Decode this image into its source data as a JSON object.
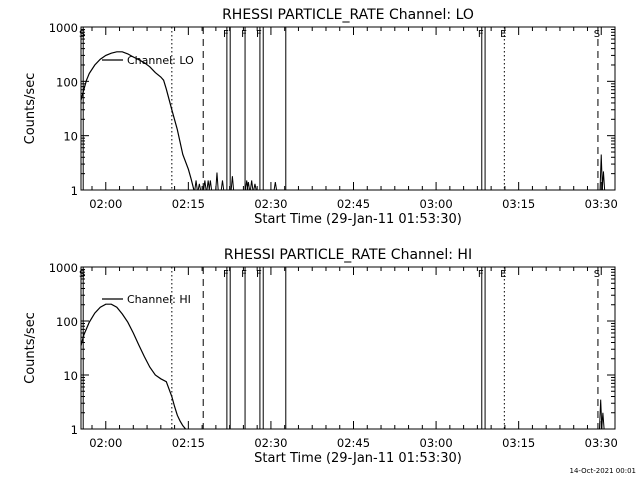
{
  "footer": {
    "timestamp": "14-Oct-2021 00:01"
  },
  "flag_colors": {
    "line": "#000000",
    "background": "#ffffff"
  },
  "chart_data": [
    {
      "type": "line",
      "title": "RHESSI PARTICLE_RATE Channel: LO",
      "xlabel": "Start Time (29-Jan-11 01:53:30)",
      "ylabel": "Counts/sec",
      "yscale": "log",
      "ylim": [
        1,
        1000
      ],
      "xlim_min": [
        115.5,
        212.5
      ],
      "x_tick_labels": [
        "02:00",
        "02:15",
        "02:30",
        "02:45",
        "03:00",
        "03:15",
        "03:30"
      ],
      "x_tick_values": [
        120,
        135,
        150,
        165,
        180,
        195,
        210
      ],
      "y_tick_labels": [
        "1",
        "10",
        "100",
        "1000"
      ],
      "y_tick_values": [
        1,
        10,
        100,
        1000
      ],
      "legend": "Channel: LO",
      "grid": false,
      "series": [
        {
          "name": "Channel: LO",
          "x": [
            115.5,
            116.0,
            116.5,
            117.0,
            118.0,
            119.0,
            120.0,
            121.0,
            122.0,
            123.0,
            124.0,
            125.0,
            126.0,
            127.0,
            128.0,
            129.0,
            130.0,
            130.5,
            131.0,
            132.0,
            133.0,
            134.0,
            135.0,
            135.5,
            136.0
          ],
          "y": [
            45,
            70,
            105,
            140,
            200,
            255,
            300,
            330,
            350,
            350,
            320,
            280,
            250,
            220,
            185,
            145,
            120,
            105,
            72,
            30,
            13,
            4.5,
            2.4,
            1.6,
            1
          ]
        }
      ],
      "spikes": [
        {
          "x": 136.4,
          "y": 1.5
        },
        {
          "x": 137.0,
          "y": 1.3
        },
        {
          "x": 138.0,
          "y": 1.5
        },
        {
          "x": 138.6,
          "y": 1.5
        },
        {
          "x": 139.0,
          "y": 1.5
        },
        {
          "x": 140.2,
          "y": 2.1
        },
        {
          "x": 141.2,
          "y": 1.5
        },
        {
          "x": 143.0,
          "y": 1.8
        },
        {
          "x": 145.6,
          "y": 1.5
        },
        {
          "x": 145.9,
          "y": 1.4
        },
        {
          "x": 146.5,
          "y": 1.5
        },
        {
          "x": 147.1,
          "y": 1.3
        },
        {
          "x": 150.8,
          "y": 1.4
        },
        {
          "x": 210.0,
          "y": 4.5
        },
        {
          "x": 210.4,
          "y": 2.2
        }
      ],
      "flags": [
        {
          "label": "S",
          "x": 115.9,
          "style": "solid"
        },
        {
          "label": "",
          "x": 132.0,
          "style": "dotted"
        },
        {
          "label": "",
          "x": 137.7,
          "style": "dashed"
        },
        {
          "label": "F",
          "x": 142.0,
          "style": "solid"
        },
        {
          "label": "",
          "x": 142.6,
          "style": "solid"
        },
        {
          "label": "F",
          "x": 145.3,
          "style": "solid"
        },
        {
          "label": "F",
          "x": 148.0,
          "style": "solid"
        },
        {
          "label": "",
          "x": 148.6,
          "style": "solid"
        },
        {
          "label": "",
          "x": 152.7,
          "style": "solid"
        },
        {
          "label": "F",
          "x": 188.3,
          "style": "solid"
        },
        {
          "label": "",
          "x": 188.9,
          "style": "solid"
        },
        {
          "label": "E",
          "x": 192.4,
          "style": "dotted"
        },
        {
          "label": "S",
          "x": 209.4,
          "style": "dashed"
        }
      ]
    },
    {
      "type": "line",
      "title": "RHESSI PARTICLE_RATE Channel: HI",
      "xlabel": "Start Time (29-Jan-11 01:53:30)",
      "ylabel": "Counts/sec",
      "yscale": "log",
      "ylim": [
        1,
        1000
      ],
      "xlim_min": [
        115.5,
        212.5
      ],
      "x_tick_labels": [
        "02:00",
        "02:15",
        "02:30",
        "02:45",
        "03:00",
        "03:15",
        "03:30"
      ],
      "x_tick_values": [
        120,
        135,
        150,
        165,
        180,
        195,
        210
      ],
      "y_tick_labels": [
        "1",
        "10",
        "100",
        "1000"
      ],
      "y_tick_values": [
        1,
        10,
        100,
        1000
      ],
      "legend": "Channel: HI",
      "grid": false,
      "series": [
        {
          "name": "Channel: HI",
          "x": [
            115.5,
            116.0,
            117.0,
            118.0,
            119.0,
            120.0,
            121.0,
            122.0,
            123.0,
            124.0,
            125.0,
            126.0,
            127.0,
            128.0,
            129.0,
            130.0,
            131.0,
            132.0,
            132.5,
            133.0,
            133.5,
            134.0,
            134.5
          ],
          "y": [
            35,
            55,
            95,
            140,
            180,
            205,
            205,
            180,
            135,
            95,
            60,
            36,
            22,
            14,
            10,
            8.5,
            7.5,
            4,
            2.6,
            1.8,
            1.4,
            1.15,
            1
          ]
        }
      ],
      "spikes": [
        {
          "x": 209.9,
          "y": 3.5
        },
        {
          "x": 210.3,
          "y": 2.0
        }
      ],
      "flags": [
        {
          "label": "S",
          "x": 115.9,
          "style": "solid"
        },
        {
          "label": "",
          "x": 132.0,
          "style": "dotted"
        },
        {
          "label": "",
          "x": 137.7,
          "style": "dashed"
        },
        {
          "label": "F",
          "x": 142.0,
          "style": "solid"
        },
        {
          "label": "",
          "x": 142.6,
          "style": "solid"
        },
        {
          "label": "F",
          "x": 145.3,
          "style": "solid"
        },
        {
          "label": "F",
          "x": 148.0,
          "style": "solid"
        },
        {
          "label": "",
          "x": 148.6,
          "style": "solid"
        },
        {
          "label": "",
          "x": 152.7,
          "style": "solid"
        },
        {
          "label": "F",
          "x": 188.3,
          "style": "solid"
        },
        {
          "label": "",
          "x": 188.9,
          "style": "solid"
        },
        {
          "label": "E",
          "x": 192.4,
          "style": "dotted"
        },
        {
          "label": "S",
          "x": 209.4,
          "style": "dashed"
        }
      ]
    }
  ]
}
